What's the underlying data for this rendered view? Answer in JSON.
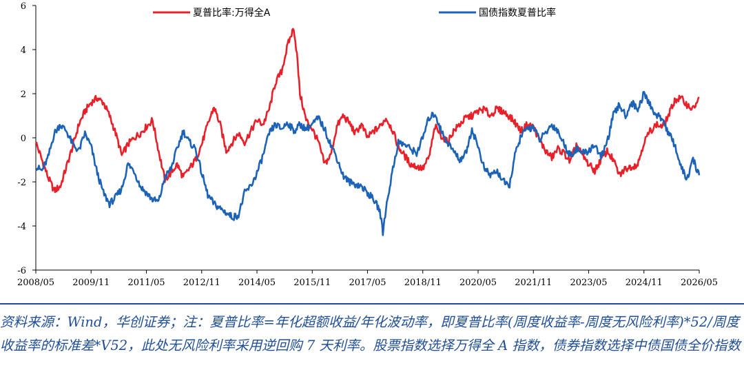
{
  "chart_data": {
    "type": "line",
    "title": "",
    "xlabel": "",
    "ylabel": "",
    "ylim": [
      -6,
      6
    ],
    "yticks": [
      -6,
      -4,
      -2,
      0,
      2,
      4,
      6
    ],
    "xlim": [
      "2008-05",
      "2026-05"
    ],
    "xticks": [
      "2008/05",
      "2009/11",
      "2011/05",
      "2012/11",
      "2014/05",
      "2015/11",
      "2017/05",
      "2018/11",
      "2020/05",
      "2021/11",
      "2023/05",
      "2024/11",
      "2026/05"
    ],
    "grid": false,
    "legend_position": "top",
    "series": [
      {
        "name": "夏普比率:万得全A",
        "color": "#e8202a",
        "points": [
          [
            "2008-05",
            -0.2
          ],
          [
            "2008-07",
            -1.0
          ],
          [
            "2008-09",
            -1.8
          ],
          [
            "2008-11",
            -2.4
          ],
          [
            "2009-01",
            -2.2
          ],
          [
            "2009-03",
            -1.3
          ],
          [
            "2009-05",
            -0.4
          ],
          [
            "2009-07",
            0.6
          ],
          [
            "2009-09",
            1.2
          ],
          [
            "2009-11",
            1.6
          ],
          [
            "2010-01",
            1.8
          ],
          [
            "2010-03",
            1.6
          ],
          [
            "2010-05",
            1.0
          ],
          [
            "2010-07",
            0.2
          ],
          [
            "2010-09",
            -0.8
          ],
          [
            "2010-11",
            -0.3
          ],
          [
            "2011-01",
            0.0
          ],
          [
            "2011-03",
            0.2
          ],
          [
            "2011-05",
            0.5
          ],
          [
            "2011-07",
            0.8
          ],
          [
            "2011-09",
            -0.6
          ],
          [
            "2011-11",
            -1.9
          ],
          [
            "2012-01",
            -1.6
          ],
          [
            "2012-03",
            -1.2
          ],
          [
            "2012-05",
            -1.8
          ],
          [
            "2012-07",
            -1.4
          ],
          [
            "2012-09",
            -1.0
          ],
          [
            "2012-11",
            -0.3
          ],
          [
            "2013-01",
            0.6
          ],
          [
            "2013-03",
            1.4
          ],
          [
            "2013-05",
            0.6
          ],
          [
            "2013-07",
            -0.6
          ],
          [
            "2013-09",
            -0.2
          ],
          [
            "2013-11",
            0.2
          ],
          [
            "2014-01",
            -0.2
          ],
          [
            "2014-03",
            0.3
          ],
          [
            "2014-05",
            0.8
          ],
          [
            "2014-07",
            0.6
          ],
          [
            "2014-09",
            1.3
          ],
          [
            "2014-11",
            2.5
          ],
          [
            "2015-01",
            3.0
          ],
          [
            "2015-03",
            4.2
          ],
          [
            "2015-05",
            5.0
          ],
          [
            "2015-06",
            3.8
          ],
          [
            "2015-07",
            2.0
          ],
          [
            "2015-09",
            0.8
          ],
          [
            "2015-11",
            0.4
          ],
          [
            "2016-01",
            -0.2
          ],
          [
            "2016-03",
            -1.2
          ],
          [
            "2016-05",
            -0.8
          ],
          [
            "2016-07",
            0.5
          ],
          [
            "2016-09",
            1.0
          ],
          [
            "2016-11",
            0.7
          ],
          [
            "2017-01",
            0.2
          ],
          [
            "2017-03",
            0.6
          ],
          [
            "2017-05",
            0.0
          ],
          [
            "2017-07",
            0.3
          ],
          [
            "2017-09",
            0.5
          ],
          [
            "2017-11",
            0.9
          ],
          [
            "2018-01",
            0.4
          ],
          [
            "2018-03",
            -0.4
          ],
          [
            "2018-05",
            -0.8
          ],
          [
            "2018-07",
            -1.2
          ],
          [
            "2018-09",
            -1.3
          ],
          [
            "2018-11",
            -1.4
          ],
          [
            "2019-01",
            -0.9
          ],
          [
            "2019-03",
            0.5
          ],
          [
            "2019-05",
            0.1
          ],
          [
            "2019-07",
            -0.2
          ],
          [
            "2019-09",
            0.3
          ],
          [
            "2019-11",
            0.6
          ],
          [
            "2020-01",
            0.9
          ],
          [
            "2020-03",
            1.0
          ],
          [
            "2020-05",
            1.2
          ],
          [
            "2020-07",
            1.3
          ],
          [
            "2020-09",
            1.0
          ],
          [
            "2020-11",
            1.3
          ],
          [
            "2021-01",
            1.2
          ],
          [
            "2021-03",
            1.0
          ],
          [
            "2021-05",
            0.7
          ],
          [
            "2021-07",
            0.3
          ],
          [
            "2021-09",
            0.6
          ],
          [
            "2021-11",
            0.5
          ],
          [
            "2022-01",
            -0.1
          ],
          [
            "2022-03",
            -0.6
          ],
          [
            "2022-05",
            -0.9
          ],
          [
            "2022-07",
            -0.5
          ],
          [
            "2022-09",
            -0.7
          ],
          [
            "2022-11",
            -1.1
          ],
          [
            "2023-01",
            -0.3
          ],
          [
            "2023-03",
            -0.8
          ],
          [
            "2023-05",
            -1.2
          ],
          [
            "2023-07",
            -1.5
          ],
          [
            "2023-09",
            -1.0
          ],
          [
            "2023-11",
            -0.6
          ],
          [
            "2024-01",
            -1.0
          ],
          [
            "2024-03",
            -1.7
          ],
          [
            "2024-05",
            -1.4
          ],
          [
            "2024-07",
            -1.3
          ],
          [
            "2024-09",
            -1.2
          ],
          [
            "2024-11",
            -0.2
          ],
          [
            "2025-01",
            0.3
          ],
          [
            "2025-03",
            0.6
          ],
          [
            "2025-05",
            0.5
          ],
          [
            "2025-07",
            1.0
          ],
          [
            "2025-09",
            1.7
          ],
          [
            "2025-11",
            1.8
          ],
          [
            "2026-01",
            1.5
          ],
          [
            "2026-03",
            1.3
          ],
          [
            "2026-05",
            1.8
          ]
        ]
      },
      {
        "name": "国债指数夏普比率",
        "color": "#1c63b8",
        "points": [
          [
            "2008-05",
            -1.3
          ],
          [
            "2008-07",
            -1.5
          ],
          [
            "2008-09",
            -0.9
          ],
          [
            "2008-11",
            0.2
          ],
          [
            "2009-01",
            0.6
          ],
          [
            "2009-03",
            0.3
          ],
          [
            "2009-05",
            -0.3
          ],
          [
            "2009-07",
            -0.6
          ],
          [
            "2009-09",
            0.2
          ],
          [
            "2009-11",
            -0.4
          ],
          [
            "2010-01",
            -1.6
          ],
          [
            "2010-03",
            -2.5
          ],
          [
            "2010-05",
            -3.0
          ],
          [
            "2010-07",
            -2.7
          ],
          [
            "2010-09",
            -2.3
          ],
          [
            "2010-11",
            -1.2
          ],
          [
            "2011-01",
            -1.5
          ],
          [
            "2011-03",
            -2.2
          ],
          [
            "2011-05",
            -2.5
          ],
          [
            "2011-07",
            -2.8
          ],
          [
            "2011-09",
            -2.9
          ],
          [
            "2011-11",
            -1.8
          ],
          [
            "2012-01",
            -1.4
          ],
          [
            "2012-03",
            -0.5
          ],
          [
            "2012-05",
            0.3
          ],
          [
            "2012-07",
            -0.2
          ],
          [
            "2012-09",
            -0.5
          ],
          [
            "2012-11",
            -1.6
          ],
          [
            "2013-01",
            -2.6
          ],
          [
            "2013-03",
            -3.0
          ],
          [
            "2013-05",
            -3.2
          ],
          [
            "2013-07",
            -3.4
          ],
          [
            "2013-09",
            -3.6
          ],
          [
            "2013-11",
            -3.5
          ],
          [
            "2014-01",
            -2.5
          ],
          [
            "2014-03",
            -2.2
          ],
          [
            "2014-05",
            -1.6
          ],
          [
            "2014-07",
            -0.8
          ],
          [
            "2014-09",
            0.2
          ],
          [
            "2014-11",
            0.6
          ],
          [
            "2015-01",
            0.4
          ],
          [
            "2015-03",
            0.7
          ],
          [
            "2015-05",
            0.3
          ],
          [
            "2015-07",
            0.6
          ],
          [
            "2015-09",
            0.4
          ],
          [
            "2015-11",
            0.6
          ],
          [
            "2016-01",
            0.9
          ],
          [
            "2016-03",
            0.4
          ],
          [
            "2016-05",
            -0.3
          ],
          [
            "2016-07",
            -0.9
          ],
          [
            "2016-09",
            -1.7
          ],
          [
            "2016-11",
            -2.0
          ],
          [
            "2017-01",
            -2.1
          ],
          [
            "2017-03",
            -2.2
          ],
          [
            "2017-05",
            -2.5
          ],
          [
            "2017-07",
            -2.8
          ],
          [
            "2017-09",
            -3.3
          ],
          [
            "2017-10",
            -4.3
          ],
          [
            "2017-11",
            -3.2
          ],
          [
            "2018-01",
            -1.6
          ],
          [
            "2018-03",
            -0.2
          ],
          [
            "2018-05",
            -0.3
          ],
          [
            "2018-07",
            -0.5
          ],
          [
            "2018-09",
            -0.7
          ],
          [
            "2018-11",
            0.0
          ],
          [
            "2019-01",
            0.9
          ],
          [
            "2019-03",
            1.1
          ],
          [
            "2019-05",
            0.3
          ],
          [
            "2019-07",
            -0.2
          ],
          [
            "2019-09",
            -0.6
          ],
          [
            "2019-11",
            -1.0
          ],
          [
            "2020-01",
            -0.7
          ],
          [
            "2020-03",
            0.4
          ],
          [
            "2020-05",
            -0.4
          ],
          [
            "2020-07",
            -1.4
          ],
          [
            "2020-09",
            -1.7
          ],
          [
            "2020-11",
            -1.5
          ],
          [
            "2021-01",
            -1.9
          ],
          [
            "2021-03",
            -2.3
          ],
          [
            "2021-05",
            -0.8
          ],
          [
            "2021-07",
            0.1
          ],
          [
            "2021-09",
            0.4
          ],
          [
            "2021-11",
            0.5
          ],
          [
            "2022-01",
            -0.1
          ],
          [
            "2022-03",
            0.2
          ],
          [
            "2022-05",
            0.6
          ],
          [
            "2022-07",
            0.3
          ],
          [
            "2022-09",
            -0.3
          ],
          [
            "2022-11",
            -0.8
          ],
          [
            "2023-01",
            -0.5
          ],
          [
            "2023-03",
            -0.7
          ],
          [
            "2023-05",
            -0.6
          ],
          [
            "2023-07",
            -0.3
          ],
          [
            "2023-09",
            -0.9
          ],
          [
            "2023-11",
            -0.2
          ],
          [
            "2024-01",
            1.0
          ],
          [
            "2024-03",
            1.5
          ],
          [
            "2024-05",
            1.0
          ],
          [
            "2024-07",
            1.6
          ],
          [
            "2024-09",
            1.3
          ],
          [
            "2024-11",
            2.0
          ],
          [
            "2025-01",
            1.5
          ],
          [
            "2025-03",
            1.0
          ],
          [
            "2025-05",
            0.9
          ],
          [
            "2025-07",
            0.2
          ],
          [
            "2025-09",
            -0.3
          ],
          [
            "2025-11",
            -1.3
          ],
          [
            "2026-01",
            -1.9
          ],
          [
            "2026-03",
            -1.0
          ],
          [
            "2026-05",
            -1.7
          ]
        ]
      }
    ]
  },
  "source_note": "资料来源：Wind，华创证券；注：夏普比率=年化超额收益/年化波动率，即夏普比率(周度收益率-周度无风险利率)*52/周度收益率的标准差*V52，此处无风险利率采用逆回购 7 天利率。股票指数选择万得全 A 指数，债券指数选择中债国债全价指数"
}
